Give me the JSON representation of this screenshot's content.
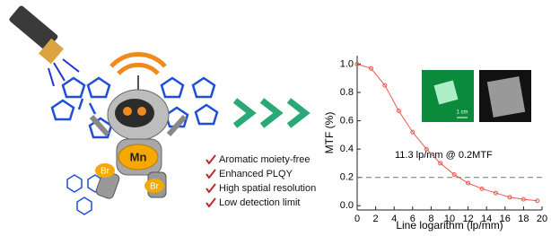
{
  "illustration": {
    "core_label": "Mn",
    "halide_labels": [
      "Br",
      "Br"
    ]
  },
  "features": [
    "Aromatic moiety-free",
    "Enhanced PLQY",
    "High spatial resolution",
    "Low detection limit"
  ],
  "chart_data": {
    "type": "line",
    "x_label": "Line logarithm (lp/mm)",
    "y_label": "MTF (%)",
    "annotation": "11.3 lp/mm @ 0.2MTF",
    "inset_label": "1 cm",
    "x": [
      0,
      1.5,
      3,
      4.5,
      6,
      7.5,
      9,
      10.5,
      12,
      13.5,
      15,
      16.5,
      18,
      19.5
    ],
    "series": [
      {
        "color": "#e8584f",
        "values": [
          1.0,
          0.97,
          0.85,
          0.67,
          0.52,
          0.4,
          0.3,
          0.22,
          0.16,
          0.12,
          0.09,
          0.06,
          0.045,
          0.035
        ]
      }
    ],
    "xlim": [
      0,
      20
    ],
    "ylim": [
      -0.03,
      1.06
    ],
    "xticks": [
      0,
      2,
      4,
      6,
      8,
      10,
      12,
      14,
      16,
      18,
      20
    ],
    "yticks": [
      {
        "value": 0,
        "label": "0.0"
      },
      0.2,
      0.4,
      0.6,
      0.8,
      {
        "value": 1,
        "label": "1.0"
      }
    ],
    "hline": 0.2
  }
}
